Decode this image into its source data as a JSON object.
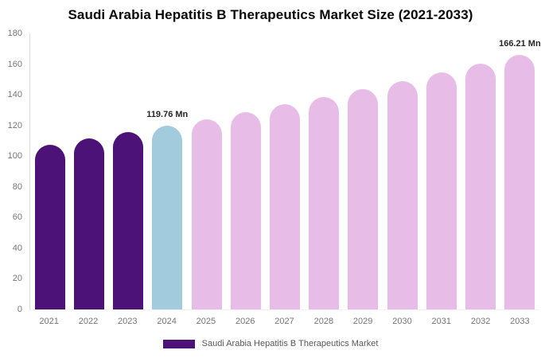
{
  "chart_data": {
    "type": "bar",
    "title": "Saudi Arabia Hepatitis B Therapeutics Market Size (2021-2033)",
    "unit": "Mn",
    "categories": [
      "2021",
      "2022",
      "2023",
      "2024",
      "2025",
      "2026",
      "2027",
      "2028",
      "2029",
      "2030",
      "2031",
      "2032",
      "2033"
    ],
    "values": [
      107.4,
      111.4,
      115.5,
      119.76,
      124.2,
      128.8,
      133.6,
      138.6,
      143.7,
      149.0,
      154.6,
      160.3,
      166.21
    ],
    "bar_colors": [
      "#4d1277",
      "#4d1277",
      "#4d1277",
      "#a2cbde",
      "#e7bde7",
      "#e7bde7",
      "#e7bde7",
      "#e7bde7",
      "#e7bde7",
      "#e7bde7",
      "#e7bde7",
      "#e7bde7",
      "#e7bde7"
    ],
    "annotations": [
      {
        "index": 3,
        "text": "119.76 Mn"
      },
      {
        "index": 12,
        "text": "166.21 Mn"
      }
    ],
    "ylim": [
      0,
      180
    ],
    "yticks": [
      0,
      20,
      40,
      60,
      80,
      100,
      120,
      140,
      160,
      180
    ],
    "xlabel": "",
    "ylabel": "",
    "grid": "off",
    "legend_position": "bottom-center"
  },
  "legend": {
    "label": "Saudi Arabia Hepatitis B Therapeutics Market",
    "swatch_color": "#4d1277"
  },
  "colors": {
    "historical_bar": "#4d1277",
    "current_year_bar": "#a2cbde",
    "forecast_bar": "#e7bde7",
    "axis_text": "#757575",
    "title_text": "#0a0a0a"
  }
}
